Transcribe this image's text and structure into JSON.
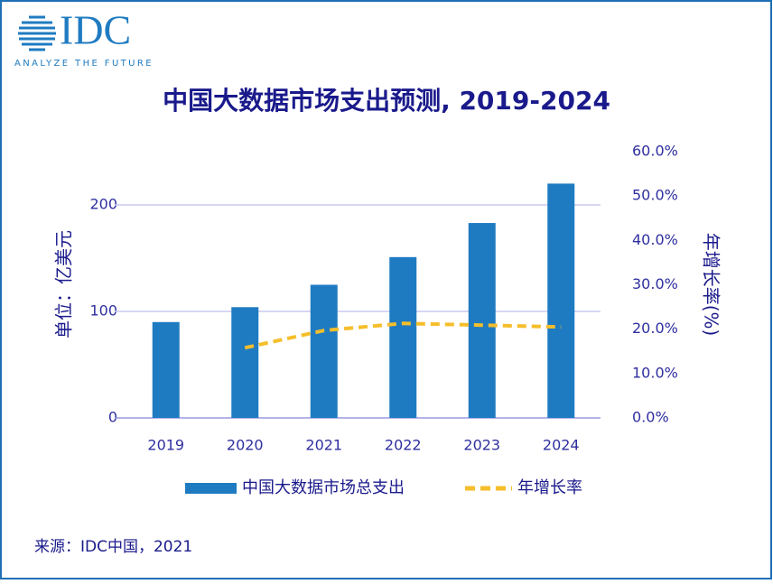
{
  "logo": {
    "name": "IDC",
    "tagline": "ANALYZE THE FUTURE"
  },
  "chart_data": {
    "type": "bar",
    "title": "中国大数据市场支出预测, 2019-2024",
    "categories": [
      "2019",
      "2020",
      "2021",
      "2022",
      "2023",
      "2024"
    ],
    "series": [
      {
        "name": "中国大数据市场总支出",
        "type": "bar",
        "color": "#1f7bc1",
        "values": [
          90,
          104,
          125,
          151,
          183,
          220
        ]
      },
      {
        "name": "年增长率",
        "type": "line",
        "axis": "y2",
        "color": "#f5be2b",
        "values": [
          null,
          15.8,
          19.7,
          21.3,
          20.9,
          20.5
        ]
      }
    ],
    "ylabel": "单位：亿美元",
    "y2label": "年增长率(%)",
    "ylim": [
      0,
      250
    ],
    "yticks": [
      0,
      100,
      200
    ],
    "y2lim": [
      0,
      60
    ],
    "y2ticks": [
      {
        "value": 0,
        "label": "0.0%"
      },
      {
        "value": 10,
        "label": "10.0%"
      },
      {
        "value": 20,
        "label": "20.0%"
      },
      {
        "value": 30,
        "label": "30.0%"
      },
      {
        "value": 40,
        "label": "40.0%"
      },
      {
        "value": 50,
        "label": "50.0%"
      },
      {
        "value": 60,
        "label": "60.0%"
      }
    ],
    "grid": true
  },
  "source": "来源：IDC中国，2021"
}
